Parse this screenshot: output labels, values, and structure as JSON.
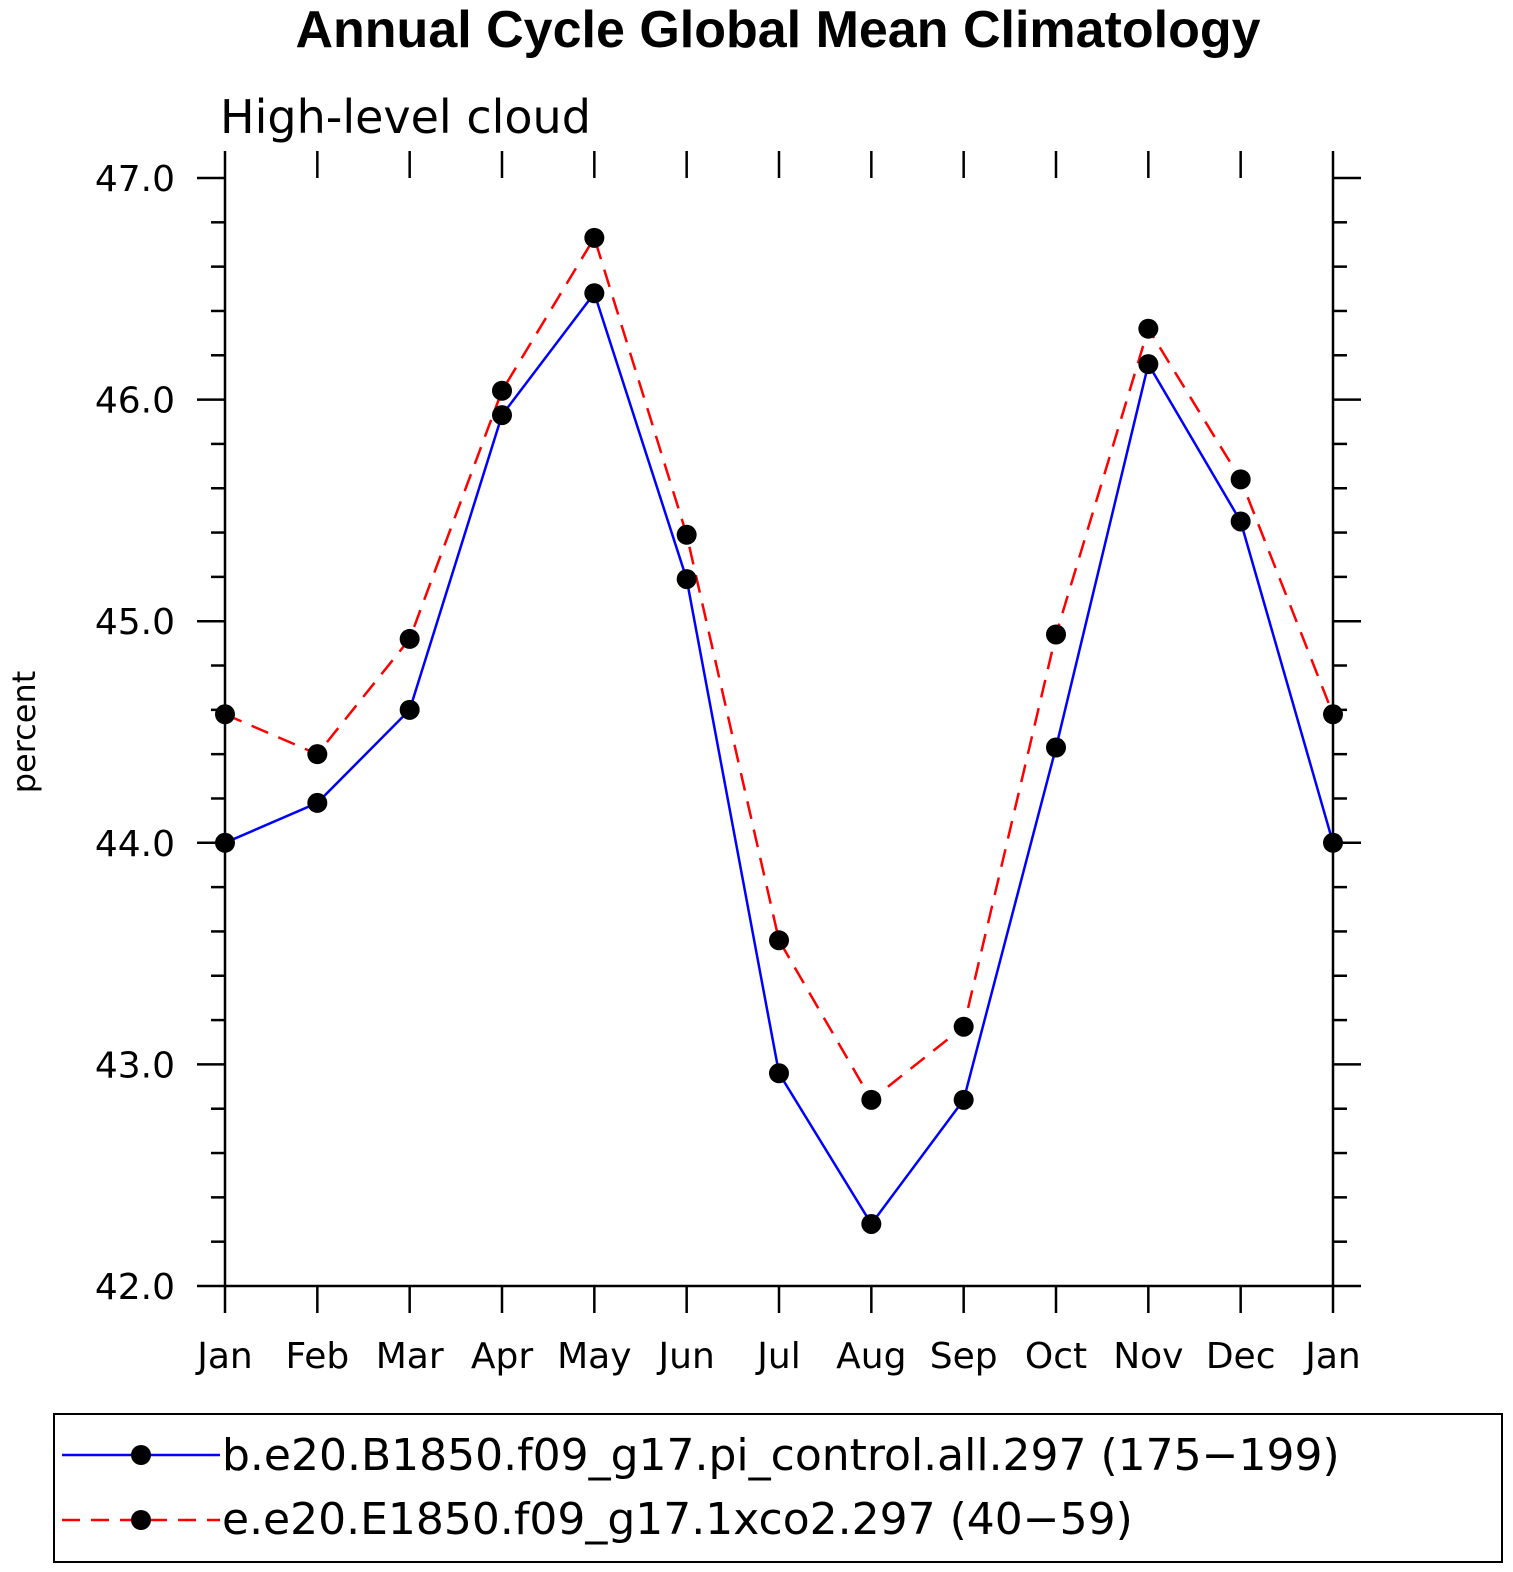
{
  "chart_data": {
    "type": "line",
    "title": "Annual Cycle Global Mean Climatology",
    "subtitle": "High-level cloud",
    "xlabel": "",
    "ylabel": "percent",
    "categories": [
      "Jan",
      "Feb",
      "Mar",
      "Apr",
      "May",
      "Jun",
      "Jul",
      "Aug",
      "Sep",
      "Oct",
      "Nov",
      "Dec",
      "Jan"
    ],
    "ylim": [
      42.0,
      47.0
    ],
    "yticks": [
      "42.0",
      "43.0",
      "44.0",
      "45.0",
      "46.0",
      "47.0"
    ],
    "grid": false,
    "legend_position": "bottom",
    "series": [
      {
        "name": "b.e20.B1850.f09_g17.pi_control.all.297 (175−199)",
        "color": "#0000ff",
        "dash": "solid",
        "values": [
          44.0,
          44.18,
          44.6,
          45.93,
          46.48,
          45.19,
          42.96,
          42.28,
          42.84,
          44.43,
          46.16,
          45.45,
          44.0
        ]
      },
      {
        "name": "e.e20.E1850.f09_g17.1xco2.297 (40−59)",
        "color": "#ff0000",
        "dash": "dashed",
        "values": [
          44.58,
          44.4,
          44.92,
          46.04,
          46.73,
          45.39,
          43.56,
          42.84,
          43.17,
          44.94,
          46.32,
          45.64,
          44.58
        ]
      }
    ]
  }
}
